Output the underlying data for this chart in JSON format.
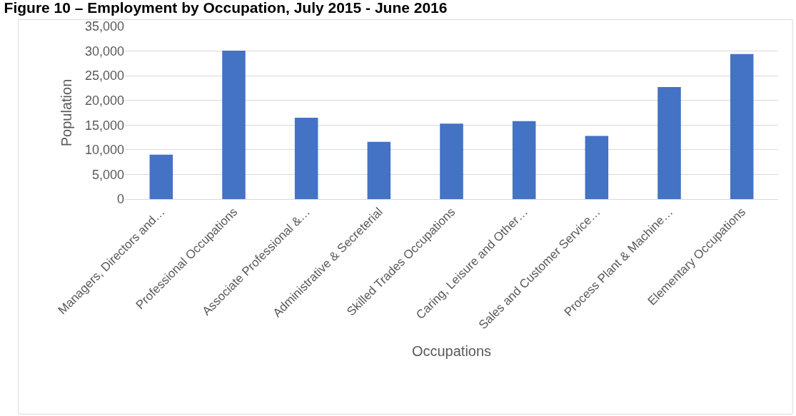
{
  "chart_data": {
    "type": "bar",
    "title": "Figure 10 – Employment by Occupation, July 2015 - June 2016",
    "xlabel": "Occupations",
    "ylabel": "Population",
    "categories": [
      "Managers, Directors and…",
      "Professional Occupations",
      "Associate Professional &…",
      "Administrative & Secreterial",
      "Skilled Trades Occupations",
      "Caring, Leisure and Other…",
      "Sales and Customer Service…",
      "Process Plant & Machine…",
      "Elementary Occupations"
    ],
    "values": [
      9000,
      30100,
      16500,
      11600,
      15300,
      15800,
      12800,
      22700,
      29400
    ],
    "color": "#4472c4",
    "ylim": [
      0,
      35000
    ],
    "yticks": [
      {
        "value": 0,
        "label": "0"
      },
      {
        "value": 5000,
        "label": "5,000"
      },
      {
        "value": 10000,
        "label": "10,000"
      },
      {
        "value": 15000,
        "label": "15,000"
      },
      {
        "value": 20000,
        "label": "20,000"
      },
      {
        "value": 25000,
        "label": "25,000"
      },
      {
        "value": 30000,
        "label": "30,000"
      },
      {
        "value": 35000,
        "label": "35,000"
      }
    ],
    "grid": "y",
    "legend": false
  }
}
